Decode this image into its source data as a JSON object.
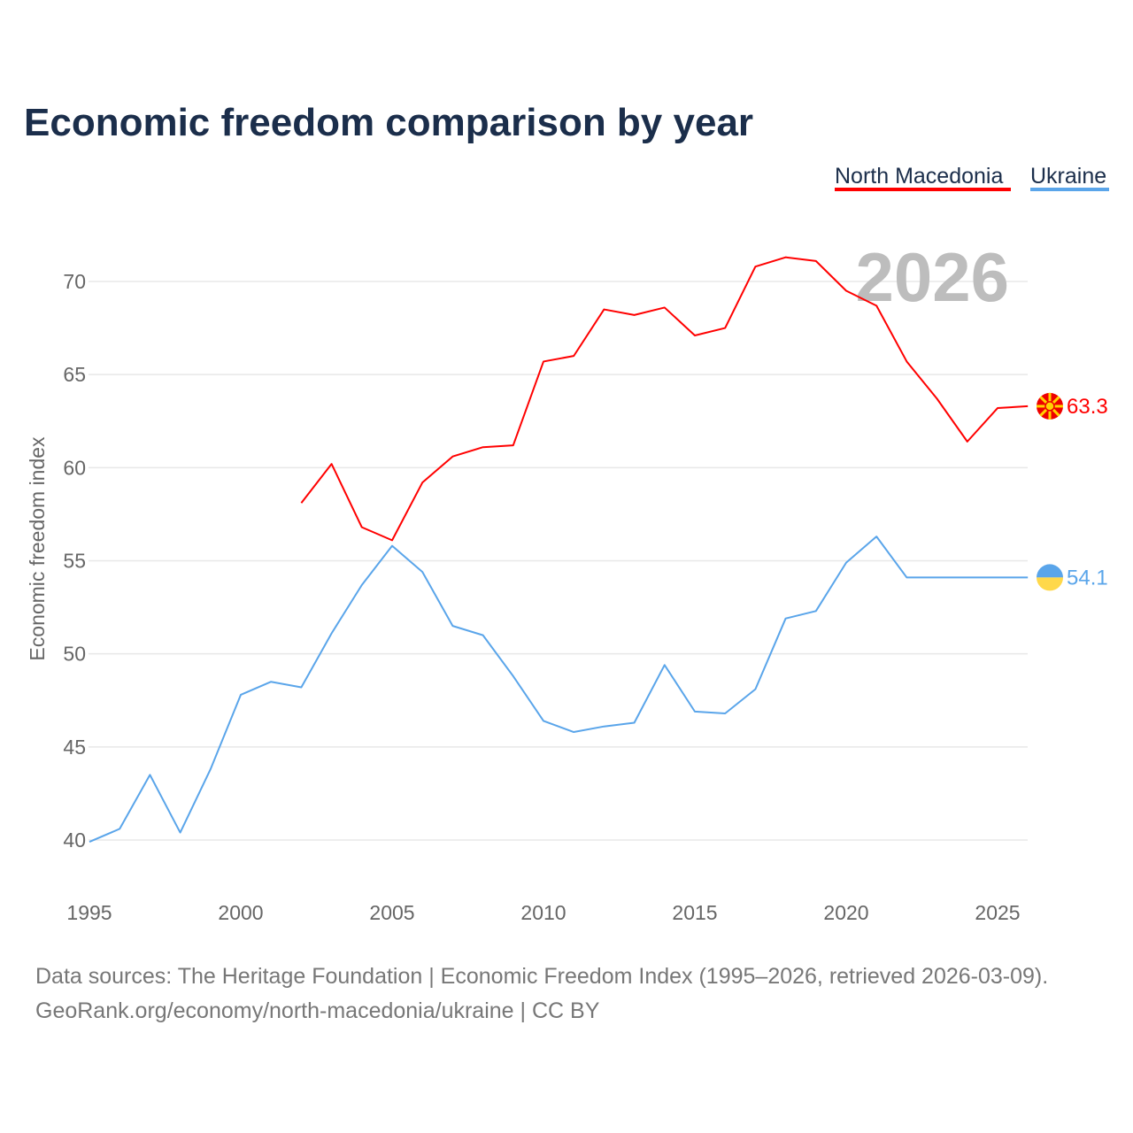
{
  "chart_data": {
    "type": "line",
    "title": "Economic freedom comparison by year",
    "ylabel": "Economic freedom index",
    "xlabel": "",
    "ylim": [
      37.5,
      72.5
    ],
    "xlim": [
      1995,
      2026
    ],
    "yticks": [
      "40",
      "45",
      "50",
      "55",
      "60",
      "65",
      "70"
    ],
    "xticks": [
      "1995",
      "2000",
      "2005",
      "2010",
      "2015",
      "2020",
      "2025"
    ],
    "year_label": "2026",
    "legend_position": "top-right",
    "series": [
      {
        "name": "North Macedonia",
        "color": "#ff0000",
        "end_label": "63.3",
        "x": [
          2002,
          2003,
          2004,
          2005,
          2006,
          2007,
          2008,
          2009,
          2010,
          2011,
          2012,
          2013,
          2014,
          2015,
          2016,
          2017,
          2018,
          2019,
          2020,
          2021,
          2022,
          2023,
          2024,
          2025,
          2026
        ],
        "values": [
          58.1,
          60.2,
          56.8,
          56.1,
          59.2,
          60.6,
          61.1,
          61.2,
          65.7,
          66.0,
          68.5,
          68.2,
          68.6,
          67.1,
          67.5,
          70.8,
          71.3,
          71.1,
          69.5,
          68.7,
          65.7,
          63.7,
          61.4,
          63.2,
          63.3
        ]
      },
      {
        "name": "Ukraine",
        "color": "#5aa5ea",
        "end_label": "54.1",
        "x": [
          1995,
          1996,
          1997,
          1998,
          1999,
          2000,
          2001,
          2002,
          2003,
          2004,
          2005,
          2006,
          2007,
          2008,
          2009,
          2010,
          2011,
          2012,
          2013,
          2014,
          2015,
          2016,
          2017,
          2018,
          2019,
          2020,
          2021,
          2022,
          2023,
          2024,
          2025,
          2026
        ],
        "values": [
          39.9,
          40.6,
          43.5,
          40.4,
          43.8,
          47.8,
          48.5,
          48.2,
          51.1,
          53.7,
          55.8,
          54.4,
          51.5,
          51.0,
          48.8,
          46.4,
          45.8,
          46.1,
          46.3,
          49.4,
          46.9,
          46.8,
          48.1,
          51.9,
          52.3,
          54.9,
          56.3,
          54.1,
          54.1,
          54.1,
          54.1,
          54.1
        ]
      }
    ],
    "source_lines": [
      "Data sources: The Heritage Foundation | Economic Freedom Index (1995–2026, retrieved 2026-03-09).",
      "GeoRank.org/economy/north-macedonia/ukraine | CC BY"
    ]
  }
}
